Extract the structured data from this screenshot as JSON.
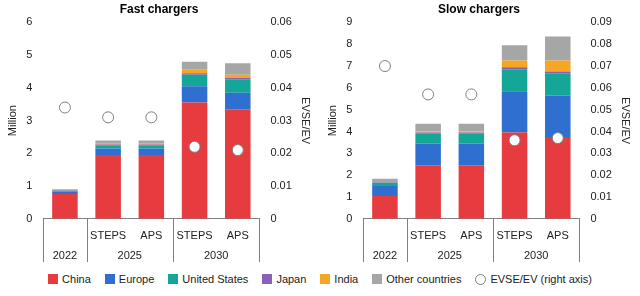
{
  "chart_data": [
    {
      "type": "bar",
      "title": "Fast chargers",
      "y_label": "Million",
      "y2_label": "EVSE/EV",
      "categories": [
        null,
        "STEPS",
        "APS",
        "STEPS",
        "APS"
      ],
      "category_groups": [
        "2022",
        "2025",
        "2025",
        "2030",
        "2030"
      ],
      "stacked": true,
      "grid": false,
      "legend": "bottom",
      "ylim": [
        0,
        6
      ],
      "yticks": [
        0,
        1,
        2,
        3,
        4,
        5,
        6
      ],
      "y2lim": [
        0,
        0.06
      ],
      "y2ticks": [
        0,
        0.01,
        0.02,
        0.03,
        0.04,
        0.05,
        0.06
      ],
      "series": [
        {
          "name": "China",
          "color": "#e63b3f",
          "values": [
            0.76,
            1.95,
            1.95,
            3.55,
            3.35
          ]
        },
        {
          "name": "Europe",
          "color": "#2e6fd0",
          "values": [
            0.07,
            0.2,
            0.2,
            0.5,
            0.5
          ]
        },
        {
          "name": "United States",
          "color": "#14a697",
          "values": [
            0.03,
            0.1,
            0.1,
            0.35,
            0.4
          ]
        },
        {
          "name": "Japan",
          "color": "#8c5fb9",
          "values": [
            0.01,
            0.02,
            0.02,
            0.05,
            0.05
          ]
        },
        {
          "name": "India",
          "color": "#f5a623",
          "values": [
            0.0,
            0.02,
            0.02,
            0.1,
            0.1
          ]
        },
        {
          "name": "Other countries",
          "color": "#a6a6a6",
          "values": [
            0.03,
            0.1,
            0.1,
            0.25,
            0.35
          ]
        },
        {
          "name": "EVSE/EV (right axis)",
          "type": "scatter",
          "marker": "circle",
          "color": "#ffffff",
          "axis": "y2",
          "values": [
            0.034,
            0.031,
            0.031,
            0.022,
            0.021
          ]
        }
      ]
    },
    {
      "type": "bar",
      "title": "Slow chargers",
      "y_label": "Million",
      "y2_label": "EVSE/EV",
      "categories": [
        null,
        "STEPS",
        "APS",
        "STEPS",
        "APS"
      ],
      "category_groups": [
        "2022",
        "2025",
        "2025",
        "2030",
        "2030"
      ],
      "stacked": true,
      "grid": false,
      "legend": "bottom",
      "ylim": [
        0,
        9
      ],
      "yticks": [
        0,
        1,
        2,
        3,
        4,
        5,
        6,
        7,
        8,
        9
      ],
      "y2lim": [
        0,
        0.09
      ],
      "y2ticks": [
        0,
        0.01,
        0.02,
        0.03,
        0.04,
        0.05,
        0.06,
        0.07,
        0.08,
        0.09
      ],
      "series": [
        {
          "name": "China",
          "color": "#e63b3f",
          "values": [
            1.05,
            2.45,
            2.45,
            3.95,
            3.75
          ]
        },
        {
          "name": "Europe",
          "color": "#2e6fd0",
          "values": [
            0.45,
            1.0,
            1.0,
            1.9,
            1.9
          ]
        },
        {
          "name": "United States",
          "color": "#14a697",
          "values": [
            0.15,
            0.45,
            0.45,
            1.0,
            1.0
          ]
        },
        {
          "name": "Japan",
          "color": "#8c5fb9",
          "values": [
            0.03,
            0.05,
            0.05,
            0.1,
            0.1
          ]
        },
        {
          "name": "India",
          "color": "#f5a623",
          "values": [
            0.01,
            0.05,
            0.05,
            0.3,
            0.5
          ]
        },
        {
          "name": "Other countries",
          "color": "#a6a6a6",
          "values": [
            0.15,
            0.35,
            0.35,
            0.7,
            1.1
          ]
        },
        {
          "name": "EVSE/EV (right axis)",
          "type": "scatter",
          "marker": "circle",
          "color": "#ffffff",
          "axis": "y2",
          "values": [
            0.07,
            0.057,
            0.057,
            0.036,
            0.037
          ]
        }
      ]
    }
  ]
}
